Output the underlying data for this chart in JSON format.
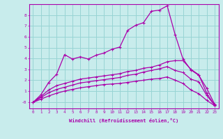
{
  "bg_color": "#c8ecec",
  "grid_color": "#98d4d4",
  "line_color": "#aa00aa",
  "xlabel": "Windchill (Refroidissement éolien,°C)",
  "xlim": [
    -0.5,
    23.5
  ],
  "ylim": [
    -0.6,
    9.0
  ],
  "yticks": [
    0,
    1,
    2,
    3,
    4,
    5,
    6,
    7,
    8
  ],
  "ytick_labels": [
    "-0",
    "1",
    "2",
    "3",
    "4",
    "5",
    "6",
    "7",
    "8"
  ],
  "xticks": [
    0,
    1,
    2,
    3,
    4,
    5,
    6,
    7,
    8,
    9,
    10,
    11,
    12,
    13,
    14,
    15,
    16,
    17,
    18,
    19,
    20,
    21,
    22,
    23
  ],
  "line1_x": [
    0,
    1,
    2,
    3,
    4,
    5,
    6,
    7,
    8,
    9,
    10,
    11,
    12,
    13,
    14,
    15,
    16,
    17,
    18,
    19,
    20,
    21,
    22,
    23
  ],
  "line1_y": [
    -0.05,
    0.65,
    1.8,
    2.55,
    4.35,
    3.95,
    4.15,
    3.95,
    4.3,
    4.5,
    4.85,
    5.05,
    6.6,
    7.05,
    7.3,
    8.35,
    8.45,
    8.85,
    6.2,
    3.95,
    2.95,
    2.45,
    1.25,
    -0.2
  ],
  "line2_x": [
    0,
    1,
    2,
    3,
    4,
    5,
    6,
    7,
    8,
    9,
    10,
    11,
    12,
    13,
    14,
    15,
    16,
    17,
    18,
    19,
    20,
    21,
    22,
    23
  ],
  "line2_y": [
    -0.05,
    0.5,
    1.1,
    1.5,
    1.7,
    1.9,
    2.1,
    2.2,
    2.3,
    2.4,
    2.5,
    2.6,
    2.8,
    2.9,
    3.1,
    3.2,
    3.4,
    3.7,
    3.8,
    3.8,
    3.0,
    2.5,
    0.8,
    -0.3
  ],
  "line3_x": [
    0,
    1,
    2,
    3,
    4,
    5,
    6,
    7,
    8,
    9,
    10,
    11,
    12,
    13,
    14,
    15,
    16,
    17,
    18,
    19,
    20,
    21,
    22,
    23
  ],
  "line3_y": [
    -0.05,
    0.4,
    0.85,
    1.15,
    1.35,
    1.55,
    1.75,
    1.85,
    1.95,
    2.05,
    2.15,
    2.25,
    2.45,
    2.55,
    2.75,
    2.9,
    3.05,
    3.25,
    2.9,
    2.7,
    2.1,
    1.85,
    0.6,
    -0.3
  ],
  "line4_x": [
    0,
    1,
    2,
    3,
    4,
    5,
    6,
    7,
    8,
    9,
    10,
    11,
    12,
    13,
    14,
    15,
    16,
    17,
    18,
    19,
    20,
    21,
    22,
    23
  ],
  "line4_y": [
    -0.05,
    0.25,
    0.55,
    0.8,
    1.0,
    1.15,
    1.3,
    1.4,
    1.5,
    1.6,
    1.65,
    1.7,
    1.8,
    1.9,
    2.0,
    2.1,
    2.15,
    2.3,
    2.0,
    1.7,
    1.1,
    0.75,
    0.15,
    -0.35
  ]
}
